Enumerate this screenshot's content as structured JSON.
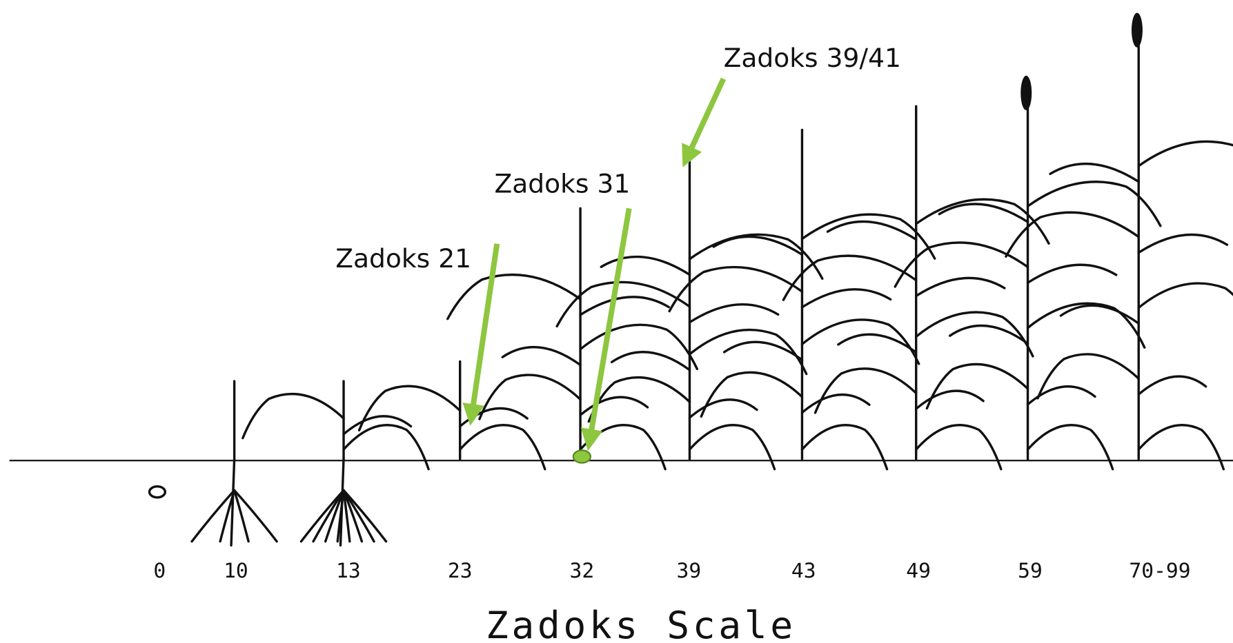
{
  "title": "Zadoks Scale",
  "stages": [
    "0",
    "10",
    "13",
    "23",
    "32",
    "39",
    "43",
    "49",
    "59",
    "70-99"
  ],
  "annotations": [
    "Zadoks 21",
    "Zadoks 31",
    "Zadoks 39/41"
  ]
}
